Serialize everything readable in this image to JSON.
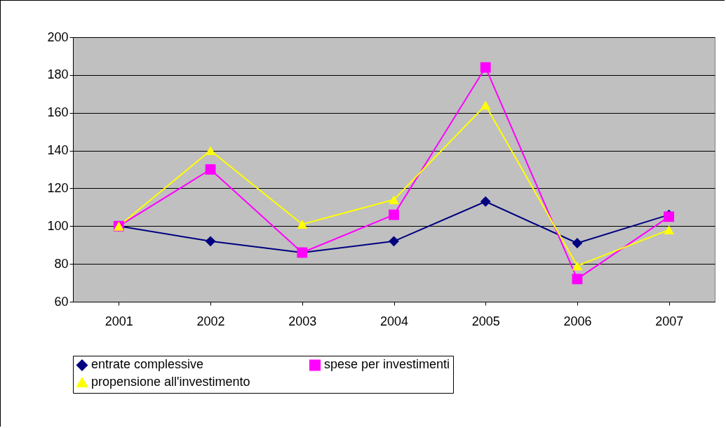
{
  "chart_data": {
    "type": "line",
    "categories": [
      "2001",
      "2002",
      "2003",
      "2004",
      "2005",
      "2006",
      "2007"
    ],
    "series": [
      {
        "name": "entrate complessive",
        "color": "#000080",
        "marker": "diamond",
        "values": [
          100,
          92,
          86,
          92,
          113,
          91,
          106
        ]
      },
      {
        "name": "spese per investimenti",
        "color": "#ff00ff",
        "marker": "square",
        "values": [
          100,
          130,
          86,
          106,
          184,
          72,
          105
        ]
      },
      {
        "name": "propensione all'investimento",
        "color": "#ffff00",
        "marker": "triangle",
        "values": [
          100,
          140,
          101,
          114,
          164,
          79,
          98
        ]
      }
    ],
    "ylim": [
      60,
      200
    ],
    "yticks": [
      60,
      80,
      100,
      120,
      140,
      160,
      180,
      200
    ],
    "grid": "y",
    "legend": "bottom"
  }
}
